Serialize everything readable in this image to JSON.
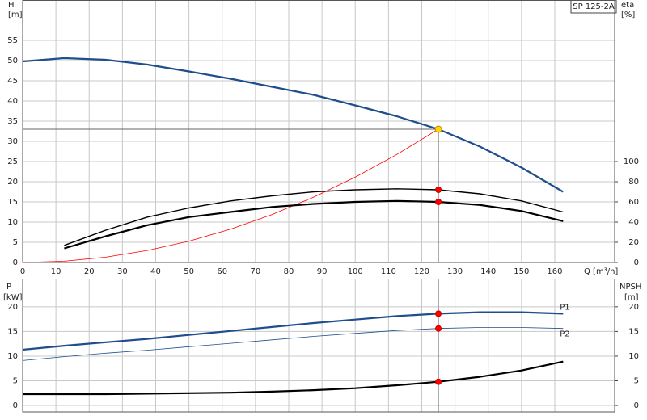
{
  "chart_data": [
    {
      "type": "line",
      "title": "SP 125-2A",
      "y_label": "H",
      "y_unit": "[m]",
      "y2_label": "eta",
      "y2_unit": "[%]",
      "x_label": "Q [m³/h]",
      "xlim": [
        0,
        178
      ],
      "xticks": [
        0,
        10,
        20,
        30,
        40,
        50,
        60,
        70,
        80,
        90,
        100,
        110,
        120,
        130,
        140,
        150,
        160
      ],
      "ylim": [
        0,
        65
      ],
      "yticks": [
        0,
        5,
        10,
        15,
        20,
        25,
        30,
        35,
        40,
        45,
        50,
        55
      ],
      "y2lim": [
        0,
        260
      ],
      "y2ticks": [
        0,
        20,
        40,
        60,
        80,
        100
      ],
      "grid": true,
      "duty_point": {
        "x": 125,
        "y": 33
      },
      "series": [
        {
          "color": "#1f4e8c",
          "style": "thick",
          "x": [
            0,
            12.5,
            25,
            37.5,
            50,
            62.5,
            75,
            87.5,
            100,
            112.5,
            125,
            137.5,
            150,
            162.5
          ],
          "values": [
            49.8,
            50.6,
            50.2,
            49,
            47.3,
            45.5,
            43.5,
            41.5,
            38.9,
            36.2,
            33,
            28.7,
            23.5,
            17.5
          ]
        },
        {
          "color": "#ff0000",
          "style": "thin",
          "x": [
            0,
            12.5,
            25,
            37.5,
            50,
            62.5,
            75,
            87.5,
            100,
            112.5,
            125
          ],
          "values": [
            0,
            0.33,
            1.32,
            2.97,
            5.28,
            8.25,
            11.88,
            16.17,
            21.12,
            26.73,
            33
          ]
        },
        {
          "color": "#000000",
          "style": "medium",
          "axis": "y2",
          "x": [
            12.5,
            25,
            37.5,
            50,
            62.5,
            75,
            87.5,
            100,
            112.5,
            125,
            137.5,
            150,
            162.5
          ],
          "values": [
            17,
            32,
            45,
            54,
            61,
            66,
            70,
            72,
            73,
            72,
            68,
            61,
            50
          ]
        },
        {
          "color": "#000000",
          "style": "thick",
          "axis": "y2",
          "x": [
            12.5,
            25,
            37.5,
            50,
            62.5,
            75,
            87.5,
            100,
            112.5,
            125,
            137.5,
            150,
            162.5
          ],
          "values": [
            14,
            26,
            37,
            45,
            50,
            55,
            58,
            60,
            61,
            60,
            57,
            51,
            41
          ]
        }
      ]
    },
    {
      "type": "line",
      "y_label": "P",
      "y_unit": "[kW]",
      "y2_label": "NPSH",
      "y2_unit": "[m]",
      "xlim": [
        0,
        178
      ],
      "ylim": [
        -1.3,
        25.7
      ],
      "yticks": [
        0,
        5,
        10,
        15,
        20
      ],
      "y2lim": [
        -1.3,
        25.7
      ],
      "y2ticks": [
        0,
        5,
        10,
        15,
        20
      ],
      "grid": true,
      "duty_q": 125,
      "series": [
        {
          "name": "P1",
          "color": "#1f4e8c",
          "style": "thick",
          "x": [
            0,
            12.5,
            25,
            37.5,
            50,
            62.5,
            75,
            87.5,
            100,
            112.5,
            125,
            137.5,
            150,
            162.5
          ],
          "values": [
            11.3,
            12.1,
            12.8,
            13.5,
            14.3,
            15.1,
            15.9,
            16.7,
            17.4,
            18.1,
            18.6,
            18.9,
            18.9,
            18.6
          ]
        },
        {
          "name": "P2",
          "color": "#1f4e8c",
          "style": "thin",
          "x": [
            0,
            12.5,
            25,
            37.5,
            50,
            62.5,
            75,
            87.5,
            100,
            112.5,
            125,
            137.5,
            150,
            162.5
          ],
          "values": [
            9.1,
            9.9,
            10.6,
            11.2,
            11.9,
            12.6,
            13.3,
            14,
            14.6,
            15.2,
            15.6,
            15.8,
            15.8,
            15.6
          ]
        },
        {
          "color": "#000000",
          "style": "thick",
          "axis": "y2",
          "x": [
            0,
            12.5,
            25,
            37.5,
            50,
            62.5,
            75,
            87.5,
            100,
            112.5,
            125,
            137.5,
            150,
            162.5
          ],
          "values": [
            2.3,
            2.3,
            2.3,
            2.4,
            2.5,
            2.6,
            2.8,
            3.1,
            3.5,
            4.1,
            4.8,
            5.8,
            7.1,
            8.9
          ]
        }
      ]
    }
  ]
}
